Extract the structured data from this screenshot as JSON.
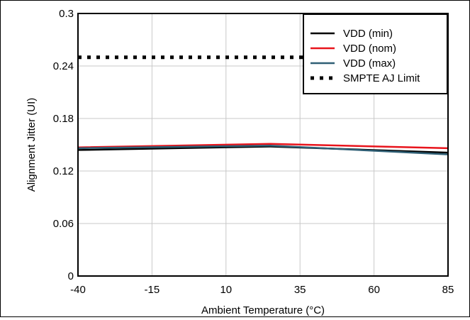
{
  "chart_data": {
    "type": "line",
    "title": "",
    "xlabel": "Ambient Temperature (°C)",
    "ylabel": "Alignment Jitter (UI)",
    "xlim": [
      -40,
      85
    ],
    "ylim": [
      0,
      0.3
    ],
    "xticks": [
      -40,
      -15,
      10,
      35,
      60,
      85
    ],
    "yticks": [
      0,
      0.06,
      0.12,
      0.18,
      0.24,
      0.3
    ],
    "x_tick_labels": [
      "-40",
      "-15",
      "10",
      "35",
      "60",
      "85"
    ],
    "y_tick_labels": [
      "0",
      "0.06",
      "0.12",
      "0.18",
      "0.24",
      "0.3"
    ],
    "grid": true,
    "legend_position": "top-right",
    "series": [
      {
        "name": "VDD (min)",
        "color": "#000000",
        "style": "solid",
        "x": [
          -40,
          25,
          85
        ],
        "y": [
          0.144,
          0.148,
          0.141
        ]
      },
      {
        "name": "VDD (nom)",
        "color": "#e8141c",
        "style": "solid",
        "x": [
          -40,
          25,
          85
        ],
        "y": [
          0.147,
          0.151,
          0.146
        ]
      },
      {
        "name": "VDD (max)",
        "color": "#2f5f75",
        "style": "solid",
        "x": [
          -40,
          25,
          85
        ],
        "y": [
          0.146,
          0.149,
          0.139
        ]
      },
      {
        "name": "SMPTE AJ Limit",
        "color": "#000000",
        "style": "dotted",
        "x": [
          -40,
          60
        ],
        "y": [
          0.25,
          0.25
        ]
      }
    ]
  }
}
